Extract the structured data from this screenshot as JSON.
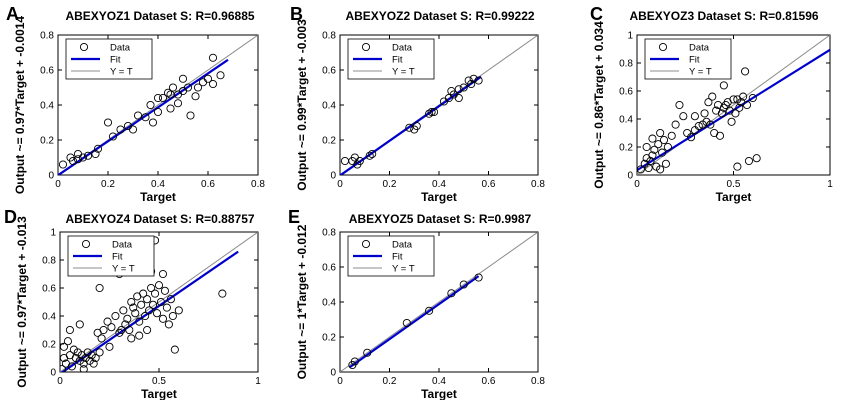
{
  "figure": {
    "fit_color": "#0000cc",
    "identity_color": "#8c8c8c",
    "marker_color": "#000000"
  },
  "chart_data": [
    {
      "letter": "A",
      "type": "scatter",
      "title": "ABEXYOZ1 Dataset S: R=0.96885",
      "xlabel": "Target",
      "ylabel": "Output ~= 0.97*Target + -0.0014",
      "xlim": [
        0,
        0.8
      ],
      "ylim": [
        0,
        0.8
      ],
      "xticks": [
        0,
        0.2,
        0.4,
        0.6,
        0.8
      ],
      "yticks": [
        0,
        0.2,
        0.4,
        0.6,
        0.8
      ],
      "legend": [
        "Data",
        "Fit",
        "Y = T"
      ],
      "fit": {
        "slope": 0.97,
        "intercept": -0.0014,
        "x_range": [
          0.0,
          0.68
        ]
      },
      "points": [
        [
          0.02,
          0.06
        ],
        [
          0.05,
          0.1
        ],
        [
          0.06,
          0.08
        ],
        [
          0.08,
          0.09
        ],
        [
          0.08,
          0.12
        ],
        [
          0.1,
          0.1
        ],
        [
          0.12,
          0.11
        ],
        [
          0.15,
          0.12
        ],
        [
          0.16,
          0.15
        ],
        [
          0.2,
          0.3
        ],
        [
          0.22,
          0.22
        ],
        [
          0.25,
          0.26
        ],
        [
          0.28,
          0.28
        ],
        [
          0.3,
          0.26
        ],
        [
          0.32,
          0.34
        ],
        [
          0.35,
          0.33
        ],
        [
          0.37,
          0.4
        ],
        [
          0.38,
          0.3
        ],
        [
          0.4,
          0.36
        ],
        [
          0.4,
          0.44
        ],
        [
          0.42,
          0.44
        ],
        [
          0.44,
          0.47
        ],
        [
          0.45,
          0.38
        ],
        [
          0.46,
          0.5
        ],
        [
          0.48,
          0.41
        ],
        [
          0.48,
          0.46
        ],
        [
          0.5,
          0.48
        ],
        [
          0.5,
          0.55
        ],
        [
          0.52,
          0.5
        ],
        [
          0.53,
          0.34
        ],
        [
          0.55,
          0.45
        ],
        [
          0.56,
          0.5
        ],
        [
          0.58,
          0.53
        ],
        [
          0.6,
          0.55
        ],
        [
          0.62,
          0.52
        ],
        [
          0.65,
          0.57
        ],
        [
          0.62,
          0.67
        ],
        [
          0.45,
          0.46
        ]
      ]
    },
    {
      "letter": "B",
      "type": "scatter",
      "title": "ABEXYOZ2 Dataset S: R=0.99222",
      "xlabel": "Target",
      "ylabel": "Output ~= 0.99*Target + -0.003",
      "xlim": [
        0,
        0.8
      ],
      "ylim": [
        0,
        0.8
      ],
      "xticks": [
        0,
        0.2,
        0.4,
        0.6,
        0.8
      ],
      "yticks": [
        0,
        0.2,
        0.4,
        0.6,
        0.8
      ],
      "legend": [
        "Data",
        "Fit",
        "Y = T"
      ],
      "fit": {
        "slope": 0.99,
        "intercept": -0.003,
        "x_range": [
          0.0,
          0.57
        ]
      },
      "points": [
        [
          0.02,
          0.08
        ],
        [
          0.05,
          0.08
        ],
        [
          0.06,
          0.1
        ],
        [
          0.07,
          0.06
        ],
        [
          0.08,
          0.08
        ],
        [
          0.12,
          0.11
        ],
        [
          0.13,
          0.12
        ],
        [
          0.28,
          0.27
        ],
        [
          0.3,
          0.26
        ],
        [
          0.31,
          0.28
        ],
        [
          0.36,
          0.35
        ],
        [
          0.37,
          0.36
        ],
        [
          0.38,
          0.36
        ],
        [
          0.42,
          0.42
        ],
        [
          0.44,
          0.44
        ],
        [
          0.46,
          0.46
        ],
        [
          0.48,
          0.49
        ],
        [
          0.5,
          0.5
        ],
        [
          0.52,
          0.54
        ],
        [
          0.53,
          0.52
        ],
        [
          0.54,
          0.55
        ],
        [
          0.56,
          0.54
        ],
        [
          0.48,
          0.44
        ],
        [
          0.45,
          0.48
        ]
      ]
    },
    {
      "letter": "C",
      "type": "scatter",
      "title": "ABEXYOZ3 Dataset S: R=0.81596",
      "xlabel": "Target",
      "ylabel": "Output ~= 0.86*Target + 0.034",
      "xlim": [
        0,
        1
      ],
      "ylim": [
        0,
        1
      ],
      "xticks": [
        0,
        0.5,
        1
      ],
      "yticks": [
        0,
        0.2,
        0.4,
        0.6,
        0.8,
        1
      ],
      "legend": [
        "Data",
        "Fit",
        "Y = T"
      ],
      "fit": {
        "slope": 0.86,
        "intercept": 0.034,
        "x_range": [
          0.0,
          1.0
        ]
      },
      "points": [
        [
          0.02,
          0.04
        ],
        [
          0.04,
          0.08
        ],
        [
          0.05,
          0.12
        ],
        [
          0.06,
          0.05
        ],
        [
          0.07,
          0.1
        ],
        [
          0.08,
          0.14
        ],
        [
          0.09,
          0.18
        ],
        [
          0.1,
          0.06
        ],
        [
          0.11,
          0.22
        ],
        [
          0.12,
          0.3
        ],
        [
          0.13,
          0.16
        ],
        [
          0.14,
          0.25
        ],
        [
          0.15,
          0.08
        ],
        [
          0.16,
          0.2
        ],
        [
          0.05,
          0.2
        ],
        [
          0.08,
          0.26
        ],
        [
          0.18,
          0.28
        ],
        [
          0.2,
          0.36
        ],
        [
          0.22,
          0.5
        ],
        [
          0.24,
          0.42
        ],
        [
          0.26,
          0.3
        ],
        [
          0.28,
          0.27
        ],
        [
          0.3,
          0.32
        ],
        [
          0.32,
          0.35
        ],
        [
          0.34,
          0.36
        ],
        [
          0.35,
          0.44
        ],
        [
          0.36,
          0.38
        ],
        [
          0.37,
          0.52
        ],
        [
          0.38,
          0.36
        ],
        [
          0.39,
          0.56
        ],
        [
          0.4,
          0.3
        ],
        [
          0.41,
          0.46
        ],
        [
          0.42,
          0.5
        ],
        [
          0.43,
          0.28
        ],
        [
          0.44,
          0.44
        ],
        [
          0.45,
          0.48
        ],
        [
          0.46,
          0.5
        ],
        [
          0.47,
          0.52
        ],
        [
          0.48,
          0.46
        ],
        [
          0.49,
          0.38
        ],
        [
          0.5,
          0.54
        ],
        [
          0.51,
          0.44
        ],
        [
          0.52,
          0.54
        ],
        [
          0.53,
          0.48
        ],
        [
          0.54,
          0.52
        ],
        [
          0.55,
          0.56
        ],
        [
          0.56,
          0.74
        ],
        [
          0.57,
          0.5
        ],
        [
          0.58,
          0.1
        ],
        [
          0.52,
          0.06
        ],
        [
          0.6,
          0.55
        ],
        [
          0.62,
          0.12
        ],
        [
          0.45,
          0.64
        ],
        [
          0.3,
          0.42
        ],
        [
          0.12,
          0.04
        ]
      ]
    },
    {
      "letter": "D",
      "type": "scatter",
      "title": "ABEXYOZ4 Dataset S: R=0.88757",
      "xlabel": "Target",
      "ylabel": "Output ~= 0.97*Target + -0.013",
      "xlim": [
        0,
        1
      ],
      "ylim": [
        0,
        1
      ],
      "xticks": [
        0,
        0.5,
        1
      ],
      "yticks": [
        0,
        0.2,
        0.4,
        0.6,
        0.8,
        1
      ],
      "legend": [
        "Data",
        "Fit",
        "Y = T"
      ],
      "fit": {
        "slope": 0.97,
        "intercept": -0.013,
        "x_range": [
          0.0,
          0.9
        ]
      },
      "points": [
        [
          0.01,
          0.02
        ],
        [
          0.02,
          0.1
        ],
        [
          0.02,
          0.18
        ],
        [
          0.03,
          0.06
        ],
        [
          0.04,
          0.22
        ],
        [
          0.05,
          0.12
        ],
        [
          0.06,
          0.04
        ],
        [
          0.07,
          0.16
        ],
        [
          0.08,
          0.1
        ],
        [
          0.09,
          0.14
        ],
        [
          0.1,
          0.08
        ],
        [
          0.11,
          0.12
        ],
        [
          0.12,
          0.06
        ],
        [
          0.13,
          0.1
        ],
        [
          0.14,
          0.14
        ],
        [
          0.15,
          0.08
        ],
        [
          0.16,
          0.12
        ],
        [
          0.17,
          0.06
        ],
        [
          0.18,
          0.1
        ],
        [
          0.19,
          0.28
        ],
        [
          0.2,
          0.14
        ],
        [
          0.21,
          0.24
        ],
        [
          0.22,
          0.3
        ],
        [
          0.24,
          0.36
        ],
        [
          0.26,
          0.32
        ],
        [
          0.28,
          0.4
        ],
        [
          0.3,
          0.28
        ],
        [
          0.31,
          0.3
        ],
        [
          0.32,
          0.44
        ],
        [
          0.33,
          0.34
        ],
        [
          0.34,
          0.38
        ],
        [
          0.35,
          0.3
        ],
        [
          0.36,
          0.5
        ],
        [
          0.37,
          0.46
        ],
        [
          0.38,
          0.42
        ],
        [
          0.39,
          0.54
        ],
        [
          0.4,
          0.36
        ],
        [
          0.41,
          0.48
        ],
        [
          0.42,
          0.56
        ],
        [
          0.43,
          0.4
        ],
        [
          0.44,
          0.52
        ],
        [
          0.45,
          0.44
        ],
        [
          0.46,
          0.6
        ],
        [
          0.47,
          0.48
        ],
        [
          0.48,
          0.56
        ],
        [
          0.49,
          0.42
        ],
        [
          0.5,
          0.62
        ],
        [
          0.51,
          0.5
        ],
        [
          0.52,
          0.38
        ],
        [
          0.53,
          0.58
        ],
        [
          0.54,
          0.46
        ],
        [
          0.55,
          0.34
        ],
        [
          0.56,
          0.52
        ],
        [
          0.57,
          0.4
        ],
        [
          0.58,
          0.16
        ],
        [
          0.6,
          0.44
        ],
        [
          0.48,
          0.94
        ],
        [
          0.2,
          0.6
        ],
        [
          0.1,
          0.34
        ],
        [
          0.3,
          0.7
        ],
        [
          0.82,
          0.56
        ],
        [
          0.44,
          0.3
        ],
        [
          0.4,
          0.26
        ],
        [
          0.36,
          0.24
        ],
        [
          0.05,
          0.3
        ],
        [
          0.12,
          0.02
        ],
        [
          0.25,
          0.18
        ],
        [
          0.52,
          0.7
        ],
        [
          0.46,
          0.72
        ]
      ]
    },
    {
      "letter": "E",
      "type": "scatter",
      "title": "ABEXYOZ5 Dataset S: R=0.9987",
      "xlabel": "Target",
      "ylabel": "Output ~= 1*Target + -0.012",
      "xlim": [
        0,
        0.8
      ],
      "ylim": [
        0,
        0.8
      ],
      "xticks": [
        0,
        0.2,
        0.4,
        0.6,
        0.8
      ],
      "yticks": [
        0,
        0.2,
        0.4,
        0.6,
        0.8
      ],
      "legend": [
        "Data",
        "Fit",
        "Y = T"
      ],
      "fit": {
        "slope": 1.0,
        "intercept": -0.012,
        "x_range": [
          0.04,
          0.56
        ]
      },
      "points": [
        [
          0.05,
          0.04
        ],
        [
          0.06,
          0.06
        ],
        [
          0.11,
          0.11
        ],
        [
          0.27,
          0.28
        ],
        [
          0.36,
          0.35
        ],
        [
          0.45,
          0.45
        ],
        [
          0.5,
          0.5
        ],
        [
          0.56,
          0.54
        ]
      ]
    }
  ]
}
